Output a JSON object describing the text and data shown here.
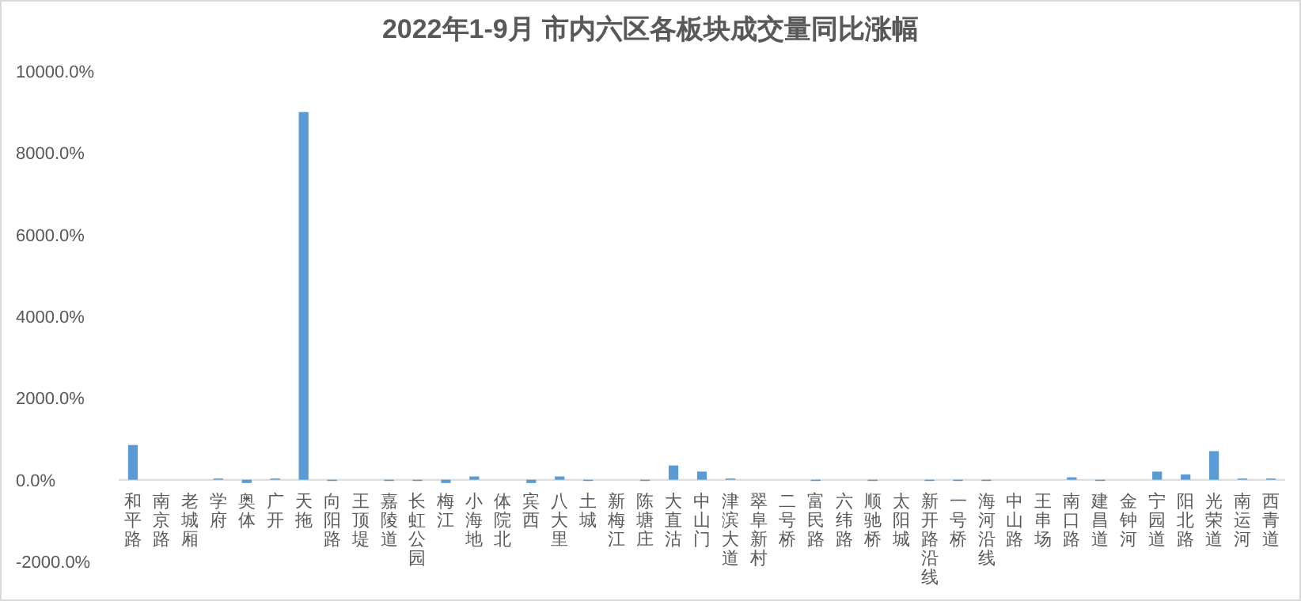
{
  "chart_data": {
    "type": "bar",
    "title": "2022年1-9月 市内六区各板块成交量同比涨幅",
    "categories": [
      "和平路",
      "南京路",
      "老城厢",
      "学府",
      "奥体",
      "广开",
      "天拖",
      "向阳路",
      "王顶堤",
      "嘉陵道",
      "长虹公园",
      "梅江",
      "小海地",
      "体院北",
      "宾西",
      "八大里",
      "土城",
      "新梅江",
      "陈塘庄",
      "大直沽",
      "中山门",
      "津滨大道",
      "翠阜新村",
      "二号桥",
      "富民路",
      "六纬路",
      "顺驰桥",
      "太阳城",
      "新开路沿线",
      "一号桥",
      "海河沿线",
      "中山路",
      "王串场",
      "南口路",
      "建昌道",
      "金钟河",
      "宁园道",
      "阳北路",
      "光荣道",
      "南运河",
      "西青道"
    ],
    "values": [
      850,
      0,
      0,
      30,
      -80,
      30,
      9000,
      -30,
      0,
      -30,
      -30,
      -80,
      80,
      0,
      -80,
      80,
      -30,
      0,
      -30,
      350,
      200,
      30,
      0,
      0,
      -30,
      0,
      -30,
      0,
      -30,
      -30,
      -30,
      0,
      0,
      60,
      -30,
      0,
      200,
      130,
      700,
      30,
      30
    ],
    "color": "#5b9bd5",
    "ylim": [
      -2000,
      10000
    ],
    "yticks": [
      {
        "value": -2000,
        "label": "-2000.0%"
      },
      {
        "value": 0,
        "label": "0.0%"
      },
      {
        "value": 2000,
        "label": "2000.0%"
      },
      {
        "value": 4000,
        "label": "4000.0%"
      },
      {
        "value": 6000,
        "label": "6000.0%"
      },
      {
        "value": 8000,
        "label": "8000.0%"
      },
      {
        "value": 10000,
        "label": "10000.0%"
      }
    ],
    "grid": false
  }
}
